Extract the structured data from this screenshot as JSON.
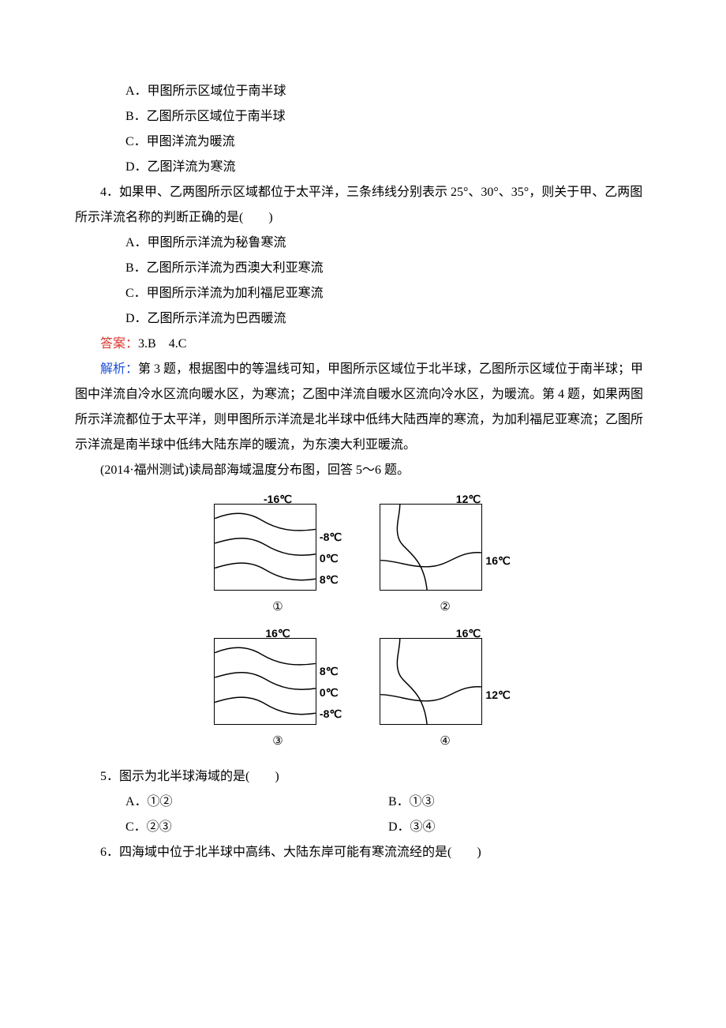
{
  "q3": {
    "choices": {
      "a": "A．甲图所示区域位于南半球",
      "b": "B．乙图所示区域位于南半球",
      "c": "C．甲图洋流为暖流",
      "d": "D．乙图洋流为寒流"
    }
  },
  "q4": {
    "stem": "4．如果甲、乙两图所示区域都位于太平洋，三条纬线分别表示 25°、30°、35°，则关于甲、乙两图所示洋流名称的判断正确的是(　　)",
    "choices": {
      "a": "A．甲图所示洋流为秘鲁寒流",
      "b": "B．乙图所示洋流为西澳大利亚寒流",
      "c": "C．甲图所示洋流为加利福尼亚寒流",
      "d": "D．乙图所示洋流为巴西暖流"
    }
  },
  "answer": {
    "label": "答案：",
    "text": "3.B　4.C"
  },
  "analysis": {
    "label": "解析：",
    "text": "第 3 题，根据图中的等温线可知，甲图所示区域位于北半球，乙图所示区域位于南半球；甲图中洋流自冷水区流向暖水区，为寒流；乙图中洋流自暖水区流向冷水区，为暖流。第 4 题，如果两图所示洋流都位于太平洋，则甲图所示洋流是北半球中低纬大陆西岸的寒流，为加利福尼亚寒流；乙图所示洋流是南半球中低纬大陆东岸的暖流，为东澳大利亚暖流。"
  },
  "passage2": {
    "intro": "(2014·福州测试)读局部海域温度分布图，回答 5～6 题。"
  },
  "figure": {
    "panels": [
      {
        "num": "①",
        "top_temp": "-16℃",
        "side_temps": [
          "-8℃",
          "0℃",
          "8℃"
        ],
        "side_layout": "three-low",
        "curves": "type_a",
        "border_color": "#000",
        "background_color": "#ffffff"
      },
      {
        "num": "②",
        "top_temp": "12℃",
        "side_temps": [
          "",
          "16℃"
        ],
        "side_layout": "one-mid",
        "curves": "type_b",
        "border_color": "#000",
        "background_color": "#ffffff"
      },
      {
        "num": "③",
        "top_temp": "16℃",
        "side_temps": [
          "8℃",
          "0℃",
          "-8℃"
        ],
        "side_layout": "three-low",
        "curves": "type_a",
        "border_color": "#000",
        "background_color": "#ffffff"
      },
      {
        "num": "④",
        "top_temp": "16℃",
        "side_temps": [
          "",
          "12℃"
        ],
        "side_layout": "one-mid",
        "curves": "type_b",
        "border_color": "#000",
        "background_color": "#ffffff"
      }
    ],
    "curve_types": {
      "type_a": [
        "M0,18 C20,10 40,8 60,20 C80,32 100,36 130,32",
        "M0,50 C25,42 45,40 65,52 C85,64 105,68 130,64",
        "M0,82 C25,74 45,72 65,84 C85,96 105,100 130,96"
      ],
      "type_b": [
        "M25,0 C25,15 18,30 24,45 C30,60 55,65 60,110",
        "M0,72 C20,72 40,82 65,80 C90,78 100,60 130,62"
      ]
    },
    "stroke_color": "#000000",
    "stroke_width": 1.5
  },
  "q5": {
    "stem": "5．图示为北半球海域的是(　　)",
    "choices": {
      "a": "A．①②",
      "b": "B．①③",
      "c": "C．②③",
      "d": "D．③④"
    }
  },
  "q6": {
    "stem": "6．四海域中位于北半球中高纬、大陆东岸可能有寒流流经的是(　　)"
  }
}
